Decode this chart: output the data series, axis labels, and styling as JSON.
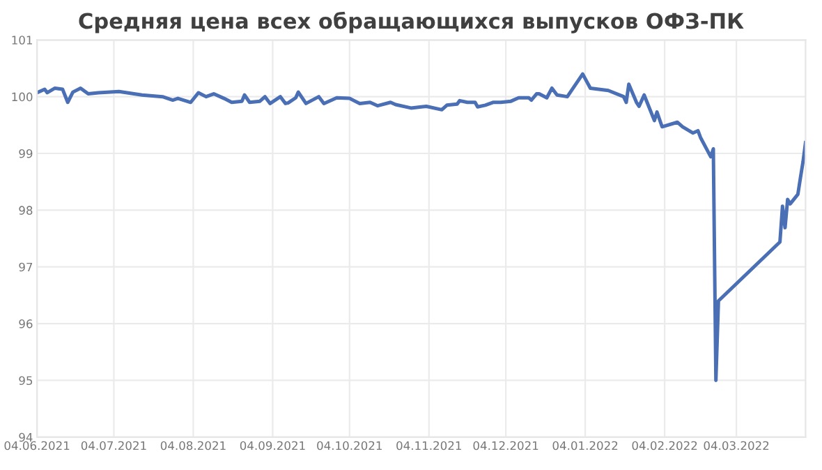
{
  "chart_data": {
    "type": "line",
    "title": "Средняя цена всех обращающихся выпусков ОФЗ-ПК",
    "x": [
      "2021-06-04",
      "2021-06-07",
      "2021-06-08",
      "2021-06-11",
      "2021-06-14",
      "2021-06-16",
      "2021-06-18",
      "2021-06-21",
      "2021-06-24",
      "2021-06-28",
      "2021-07-06",
      "2021-07-15",
      "2021-07-23",
      "2021-07-27",
      "2021-07-29",
      "2021-08-03",
      "2021-08-06",
      "2021-08-09",
      "2021-08-12",
      "2021-08-16",
      "2021-08-19",
      "2021-08-23",
      "2021-08-24",
      "2021-08-26",
      "2021-08-30",
      "2021-09-01",
      "2021-09-03",
      "2021-09-07",
      "2021-09-09",
      "2021-09-10",
      "2021-09-13",
      "2021-09-14",
      "2021-09-17",
      "2021-09-22",
      "2021-09-24",
      "2021-09-29",
      "2021-10-04",
      "2021-10-08",
      "2021-10-12",
      "2021-10-15",
      "2021-10-20",
      "2021-10-22",
      "2021-10-28",
      "2021-11-01",
      "2021-11-03",
      "2021-11-09",
      "2021-11-11",
      "2021-11-15",
      "2021-11-16",
      "2021-11-19",
      "2021-11-22",
      "2021-11-23",
      "2021-11-26",
      "2021-11-29",
      "2021-12-02",
      "2021-12-06",
      "2021-12-09",
      "2021-12-13",
      "2021-12-14",
      "2021-12-16",
      "2021-12-17",
      "2021-12-20",
      "2021-12-22",
      "2021-12-24",
      "2021-12-28",
      "2022-01-03",
      "2022-01-06",
      "2022-01-13",
      "2022-01-19",
      "2022-01-20",
      "2022-01-21",
      "2022-01-24",
      "2022-01-25",
      "2022-01-27",
      "2022-01-31",
      "2022-02-01",
      "2022-02-03",
      "2022-02-09",
      "2022-02-11",
      "2022-02-15",
      "2022-02-17",
      "2022-02-18",
      "2022-02-22",
      "2022-02-23",
      "2022-02-24",
      "2022-02-25",
      "2022-03-21",
      "2022-03-22",
      "2022-03-23",
      "2022-03-24",
      "2022-03-25",
      "2022-03-28",
      "2022-03-29",
      "2022-03-30",
      "2022-03-31"
    ],
    "series": [
      {
        "color": "#4a6fb5",
        "values": [
          100.07,
          100.13,
          100.07,
          100.15,
          100.13,
          99.9,
          100.08,
          100.15,
          100.05,
          100.07,
          100.09,
          100.03,
          100.0,
          99.94,
          99.97,
          99.9,
          100.07,
          100.0,
          100.05,
          99.97,
          99.9,
          99.92,
          100.03,
          99.9,
          99.92,
          100.0,
          99.88,
          100.0,
          99.88,
          99.89,
          99.98,
          100.08,
          99.88,
          100.0,
          99.88,
          99.98,
          99.97,
          99.88,
          99.9,
          99.84,
          99.9,
          99.86,
          99.8,
          99.82,
          99.83,
          99.77,
          99.85,
          99.87,
          99.93,
          99.9,
          99.9,
          99.82,
          99.85,
          99.9,
          99.9,
          99.92,
          99.98,
          99.98,
          99.94,
          100.05,
          100.05,
          99.98,
          100.15,
          100.03,
          100.0,
          100.4,
          100.15,
          100.11,
          100.0,
          99.9,
          100.22,
          99.9,
          99.83,
          100.03,
          99.58,
          99.73,
          99.47,
          99.55,
          99.47,
          99.36,
          99.4,
          99.28,
          98.94,
          99.08,
          95.0,
          96.4,
          97.44,
          98.07,
          97.69,
          98.19,
          98.11,
          98.28,
          98.57,
          98.85,
          99.19
        ]
      }
    ],
    "xlim": [
      "2021-06-04",
      "2022-03-31"
    ],
    "xticks": [
      {
        "value": "2021-06-04",
        "label": "04.06.2021"
      },
      {
        "value": "2021-07-04",
        "label": "04.07.2021"
      },
      {
        "value": "2021-08-04",
        "label": "04.08.2021"
      },
      {
        "value": "2021-09-04",
        "label": "04.09.2021"
      },
      {
        "value": "2021-10-04",
        "label": "04.10.2021"
      },
      {
        "value": "2021-11-04",
        "label": "04.11.2021"
      },
      {
        "value": "2021-12-04",
        "label": "04.12.2021"
      },
      {
        "value": "2022-01-04",
        "label": "04.01.2022"
      },
      {
        "value": "2022-02-04",
        "label": "04.02.2022"
      },
      {
        "value": "2022-03-04",
        "label": "04.03.2022"
      }
    ],
    "ylim": [
      94,
      101
    ],
    "yticks": [
      94,
      95,
      96,
      97,
      98,
      99,
      100,
      101
    ],
    "grid": true,
    "marker": "none",
    "line_style": "solid"
  }
}
